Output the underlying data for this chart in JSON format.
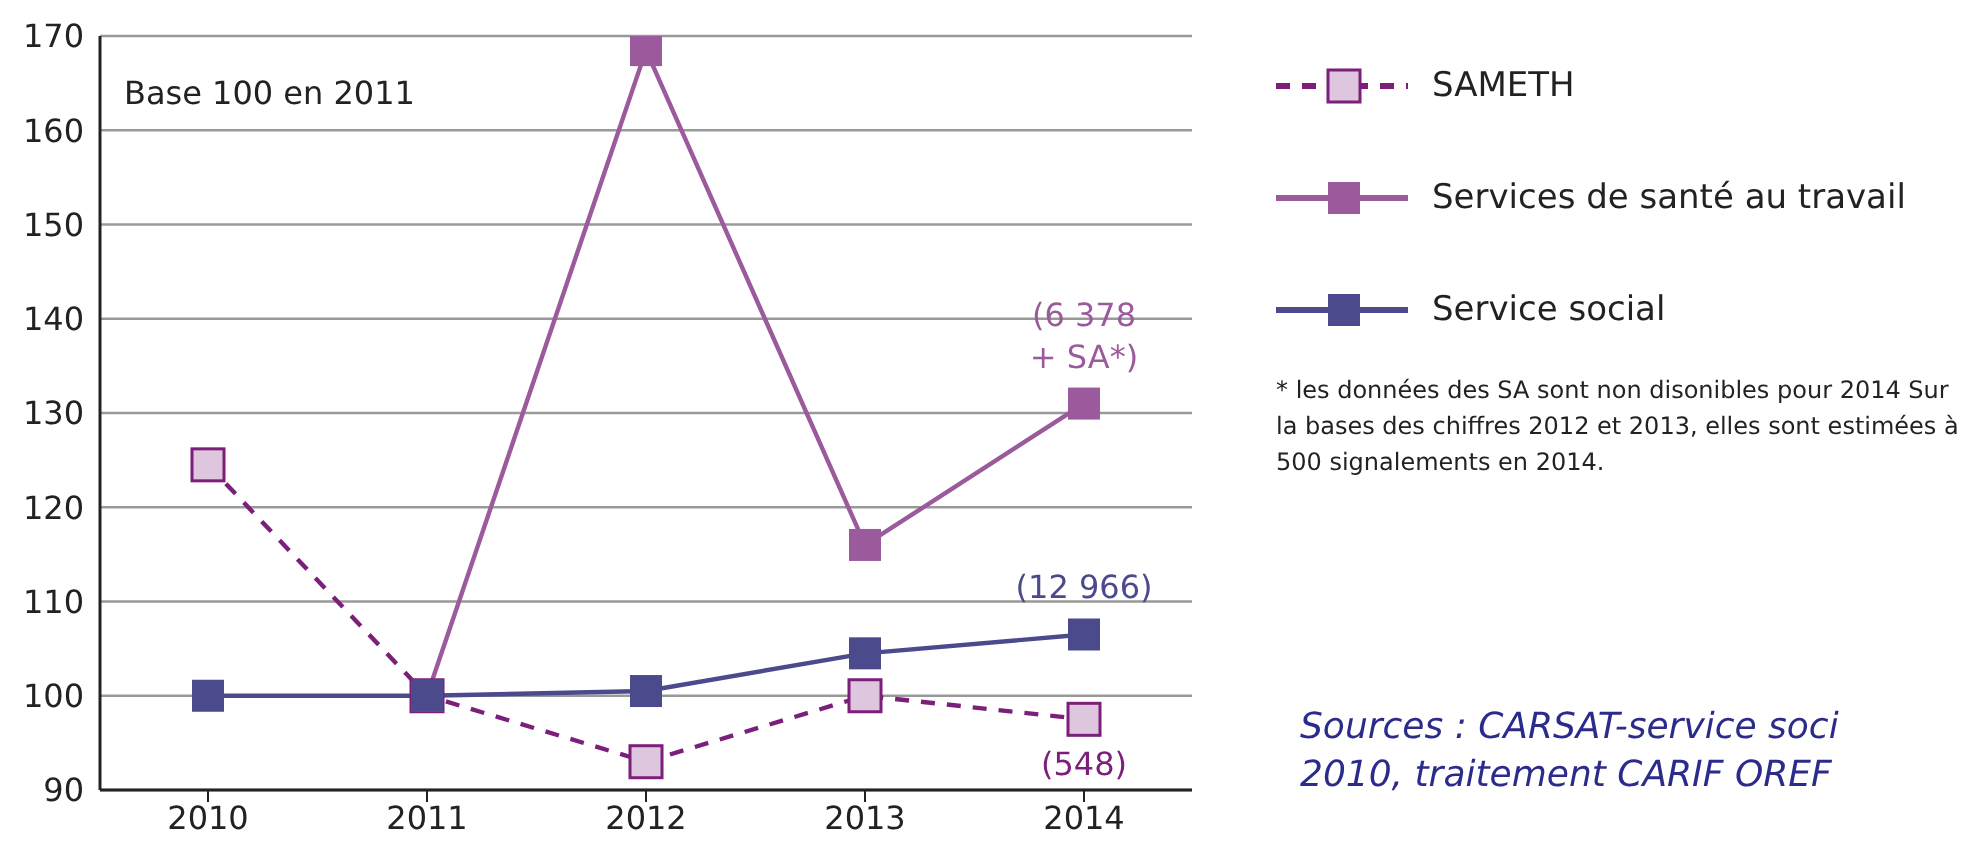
{
  "chart_data": {
    "type": "line",
    "categories": [
      "2010",
      "2011",
      "2012",
      "2013",
      "2014"
    ],
    "series": [
      {
        "name": "SAMETH",
        "color": "#7b1f7a",
        "line_style": "dashed",
        "values": [
          124.5,
          100,
          93,
          100,
          97.5
        ]
      },
      {
        "name": "Services de santé au travail",
        "color": "#9b5a9b",
        "line_style": "solid",
        "values": [
          null,
          100,
          168.5,
          116,
          131
        ]
      },
      {
        "name": "Service social",
        "color": "#4a4a8c",
        "line_style": "solid",
        "values": [
          100,
          100,
          100.5,
          104.5,
          106.5
        ]
      }
    ],
    "ylim": [
      90,
      170
    ],
    "yticks": [
      90,
      100,
      110,
      120,
      130,
      140,
      150,
      160,
      170
    ],
    "grid": "y",
    "legend": "top right",
    "marker": "square",
    "annotations": [
      "Base 100 en 2011",
      {
        "text": "(6 378 + SA*)",
        "x": "2014",
        "y": 131
      },
      {
        "text": "(12 966)",
        "x": "2014",
        "y": 106.5
      },
      {
        "text": "(548)",
        "x": "2014",
        "y": 97.5
      },
      "* les données des SA sont non disonibles pour 2014 Sur la bases des chiffres 2012 et 2013, elles sont estimées à 500 signalements en 2014.",
      "Sources : CARSAT-service soci",
      "2010, traitement CARIF OREF"
    ]
  }
}
